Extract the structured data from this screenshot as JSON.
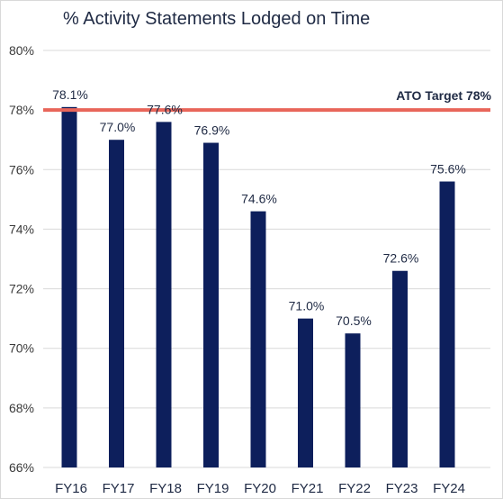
{
  "chart_data": {
    "type": "bar",
    "title": "% Activity Statements Lodged on Time",
    "categories": [
      "FY16",
      "FY17",
      "FY18",
      "FY19",
      "FY20",
      "FY21",
      "FY22",
      "FY23",
      "FY24"
    ],
    "values": [
      78.1,
      77.0,
      77.6,
      76.9,
      74.6,
      71.0,
      70.5,
      72.6,
      75.6
    ],
    "data_labels": [
      "78.1%",
      "77.0%",
      "77.6%",
      "76.9%",
      "74.6%",
      "71.0%",
      "70.5%",
      "72.6%",
      "75.6%"
    ],
    "ylim": [
      66,
      80
    ],
    "yticks": [
      66,
      68,
      70,
      72,
      74,
      76,
      78,
      80
    ],
    "ytick_labels": [
      "66%",
      "68%",
      "70%",
      "72%",
      "74%",
      "76%",
      "78%",
      "80%"
    ],
    "grid": true,
    "bar_color": "#0d1f5c",
    "target": {
      "value": 78,
      "label": "ATO Target 78%",
      "color": "#e8665a"
    }
  }
}
